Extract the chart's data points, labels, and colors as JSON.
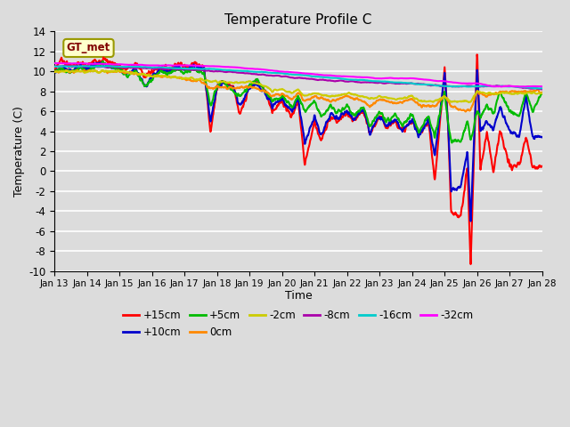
{
  "title": "Temperature Profile C",
  "xlabel": "Time",
  "ylabel": "Temperature (C)",
  "ylim": [
    -10,
    14
  ],
  "yticks": [
    -10,
    -8,
    -6,
    -4,
    -2,
    0,
    2,
    4,
    6,
    8,
    10,
    12,
    14
  ],
  "xtick_labels": [
    "Jan 13",
    "Jan 14",
    "Jan 15",
    "Jan 16",
    "Jan 17",
    "Jan 18",
    "Jan 19",
    "Jan 20",
    "Jan 21",
    "Jan 22",
    "Jan 23",
    "Jan 24",
    "Jan 25",
    "Jan 26",
    "Jan 27",
    "Jan 28"
  ],
  "annotation_text": "GT_met",
  "bg_color": "#dcdcdc",
  "fig_color": "#dcdcdc",
  "series": [
    {
      "label": "+15cm",
      "color": "#ff0000",
      "lw": 1.5
    },
    {
      "label": "+10cm",
      "color": "#0000cc",
      "lw": 1.5
    },
    {
      "label": "+5cm",
      "color": "#00bb00",
      "lw": 1.5
    },
    {
      "label": "0cm",
      "color": "#ff8800",
      "lw": 1.5
    },
    {
      "label": "-2cm",
      "color": "#cccc00",
      "lw": 1.5
    },
    {
      "label": "-8cm",
      "color": "#aa00aa",
      "lw": 1.5
    },
    {
      "label": "-16cm",
      "color": "#00cccc",
      "lw": 1.5
    },
    {
      "label": "-32cm",
      "color": "#ff00ff",
      "lw": 1.5
    }
  ]
}
